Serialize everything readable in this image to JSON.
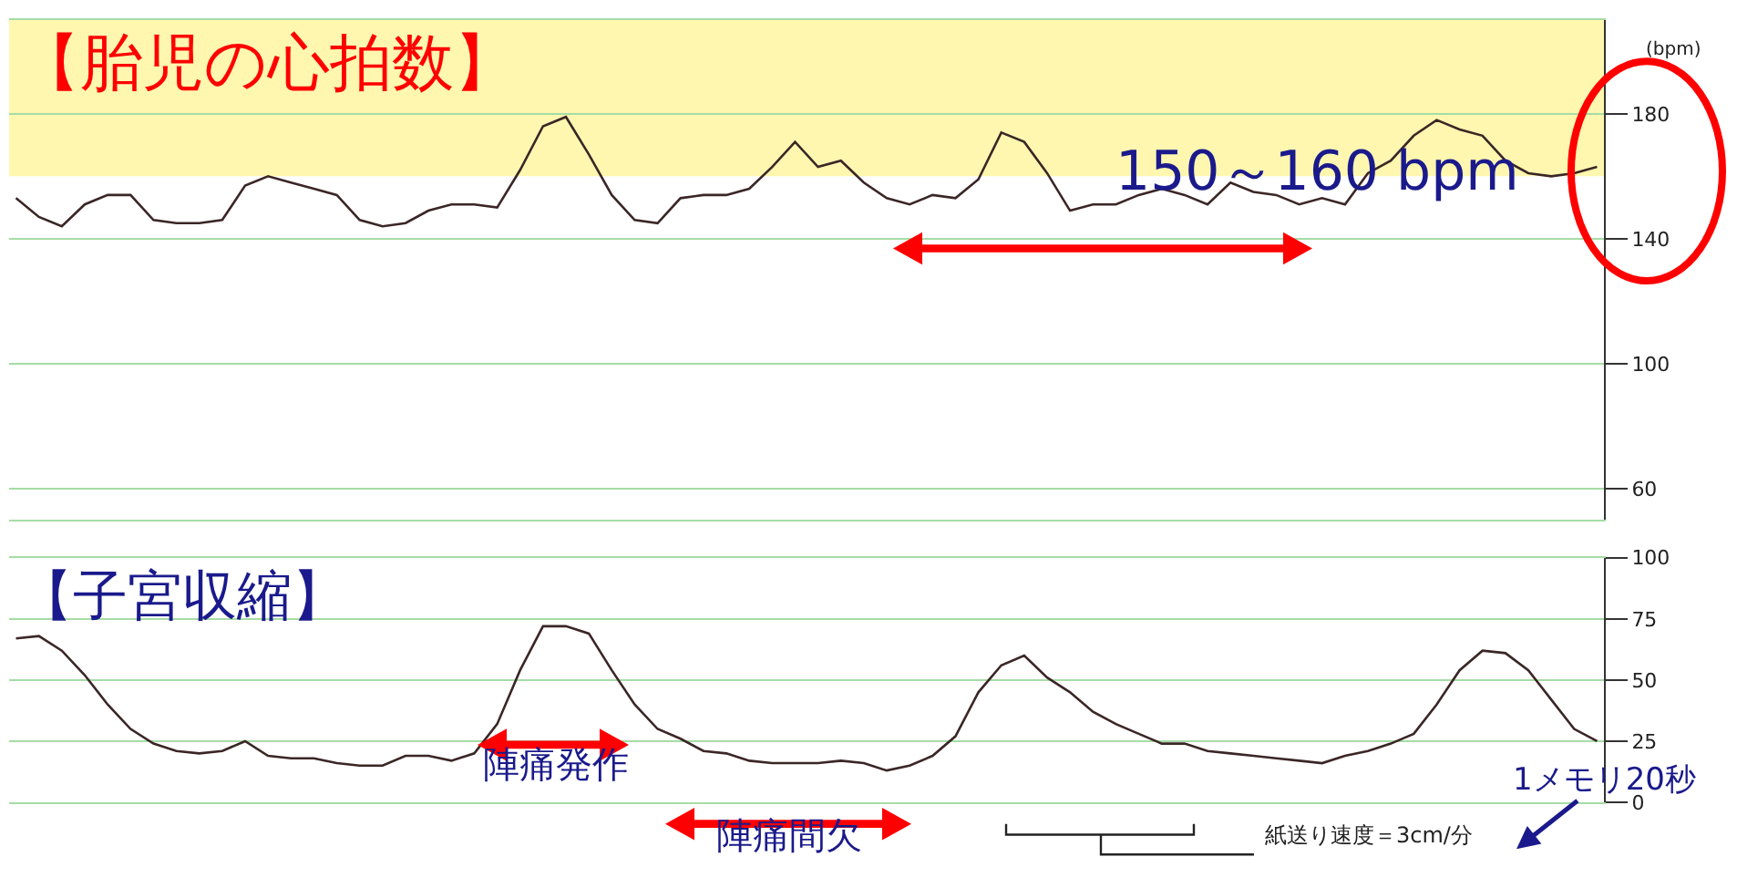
{
  "chart_data": [
    {
      "type": "line",
      "title": "【胎児の心拍数】",
      "ylabel": "(bpm)",
      "categories": [
        null,
        null,
        null,
        null,
        null,
        null,
        null,
        null,
        null,
        null,
        null,
        null,
        null,
        null,
        null,
        null,
        null,
        null,
        null,
        null,
        null,
        null,
        null,
        null,
        null,
        null,
        null,
        null,
        null,
        null,
        null,
        null,
        null,
        null,
        null,
        null,
        null,
        null,
        null,
        null,
        null,
        null,
        null,
        null,
        null,
        null,
        null,
        null,
        null,
        null,
        null,
        null,
        null,
        null,
        null,
        null,
        null,
        null,
        null,
        null,
        null,
        null,
        null,
        null,
        null,
        null,
        null,
        null,
        null,
        null
      ],
      "series": [
        {
          "color": "#3b2626",
          "values": [
            153,
            147,
            144,
            151,
            154,
            154,
            146,
            145,
            145,
            146,
            157,
            160,
            158,
            156,
            154,
            146,
            144,
            145,
            149,
            151,
            151,
            150,
            162,
            176,
            179,
            167,
            154,
            146,
            145,
            153,
            154,
            154,
            156,
            163,
            171,
            163,
            165,
            158,
            153,
            151,
            154,
            153,
            159,
            174,
            171,
            161,
            149,
            151,
            151,
            154,
            156,
            154,
            151,
            158,
            155,
            154,
            151,
            153,
            151,
            161,
            165,
            173,
            178,
            175,
            173,
            165,
            161,
            160,
            161,
            163
          ]
        }
      ],
      "ylim": [
        50,
        210
      ],
      "yticks": [
        60,
        100,
        140,
        180
      ],
      "bands": [
        {
          "axis": "y",
          "from": 160,
          "to": 210,
          "color": "#fff7b0"
        }
      ],
      "annotations": [
        "150～160 bpm"
      ],
      "tick_labels": "y",
      "grid": "y",
      "marker": "none",
      "line_style": "solid"
    },
    {
      "type": "line",
      "title": "【子宮収縮】",
      "categories": [
        null,
        null,
        null,
        null,
        null,
        null,
        null,
        null,
        null,
        null,
        null,
        null,
        null,
        null,
        null,
        null,
        null,
        null,
        null,
        null,
        null,
        null,
        null,
        null,
        null,
        null,
        null,
        null,
        null,
        null,
        null,
        null,
        null,
        null,
        null,
        null,
        null,
        null,
        null,
        null,
        null,
        null,
        null,
        null,
        null,
        null,
        null,
        null,
        null,
        null,
        null,
        null,
        null,
        null,
        null,
        null,
        null,
        null,
        null,
        null,
        null,
        null,
        null,
        null,
        null,
        null,
        null,
        null,
        null,
        null
      ],
      "series": [
        {
          "color": "#3b2626",
          "values": [
            67,
            68,
            62,
            52,
            40,
            30,
            24,
            21,
            20,
            21,
            25,
            19,
            18,
            18,
            16,
            15,
            15,
            19,
            19,
            17,
            20,
            32,
            54,
            72,
            72,
            69,
            54,
            40,
            30,
            26,
            21,
            20,
            17,
            16,
            16,
            16,
            17,
            16,
            13,
            15,
            19,
            27,
            45,
            56,
            60,
            51,
            45,
            37,
            32,
            28,
            24,
            24,
            21,
            20,
            19,
            18,
            17,
            16,
            19,
            21,
            24,
            28,
            40,
            54,
            62,
            61,
            54,
            42,
            30,
            25
          ]
        }
      ],
      "ylim": [
        0,
        100
      ],
      "yticks": [
        0,
        25,
        50,
        75,
        100
      ],
      "annotations": [
        "陣痛発作",
        "陣痛間欠",
        "紙送り速度＝3cm/分",
        "1メモリ20秒"
      ],
      "tick_labels": "y",
      "grid": "y",
      "marker": "none",
      "line_style": "solid"
    }
  ]
}
